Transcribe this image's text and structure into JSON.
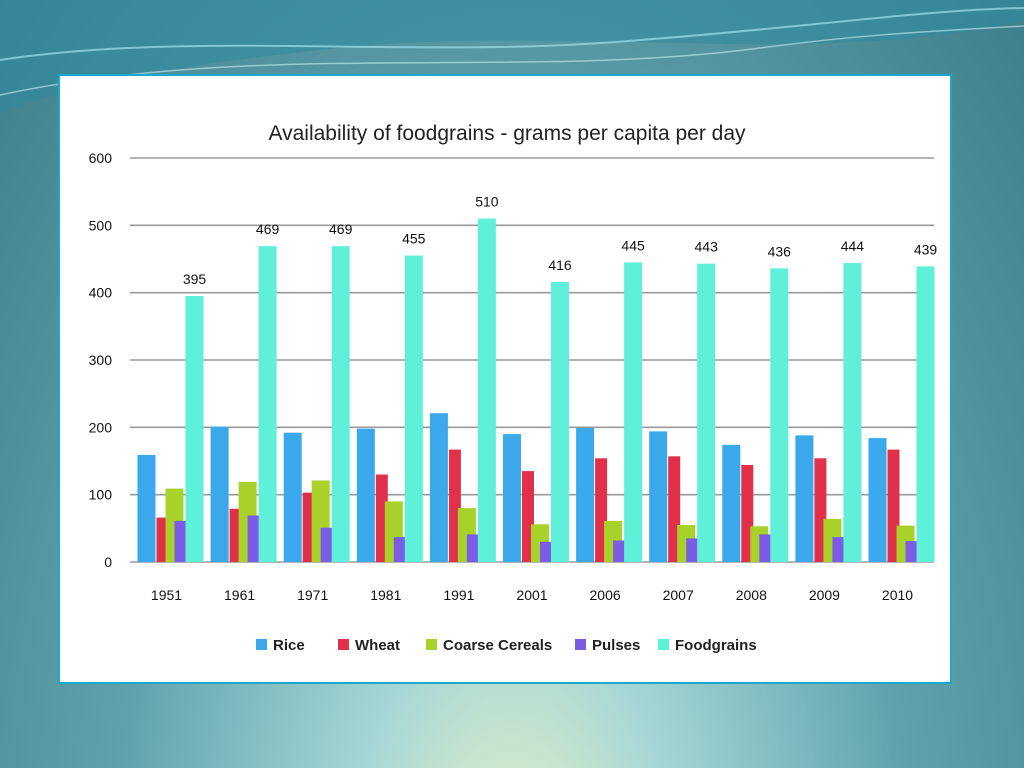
{
  "chart_data": {
    "type": "bar",
    "title": "Availability of foodgrains  - grams per capita per day",
    "xlabel": "",
    "ylabel": "",
    "ylim": [
      0,
      600
    ],
    "yticks": [
      0,
      100,
      200,
      300,
      400,
      500,
      600
    ],
    "grid": true,
    "legend_position": "bottom",
    "categories": [
      "1951",
      "1961",
      "1971",
      "1981",
      "1991",
      "2001",
      "2006",
      "2007",
      "2008",
      "2009",
      "2010"
    ],
    "series": [
      {
        "name": "Rice",
        "color": "#3aa8ea",
        "values": [
          159,
          201,
          192,
          198,
          221,
          190,
          199,
          194,
          174,
          188,
          184
        ]
      },
      {
        "name": "Wheat",
        "color": "#e0304a",
        "values": [
          66,
          79,
          103,
          130,
          167,
          135,
          154,
          157,
          144,
          154,
          167
        ]
      },
      {
        "name": "Coarse Cereals",
        "color": "#a8d12a",
        "values": [
          109,
          119,
          121,
          90,
          80,
          56,
          61,
          55,
          53,
          64,
          54
        ]
      },
      {
        "name": "Pulses",
        "color": "#7b5ce6",
        "values": [
          61,
          69,
          51,
          37,
          41,
          30,
          32,
          35,
          41,
          37,
          31
        ]
      },
      {
        "name": "Foodgrains",
        "color": "#5ef0d8",
        "values": [
          395,
          469,
          469,
          455,
          510,
          416,
          445,
          443,
          436,
          444,
          439
        ]
      }
    ],
    "data_labels_series": "Foodgrains",
    "data_labels": [
      "395",
      "469",
      "469",
      "455",
      "510",
      "416",
      "445",
      "443",
      "436",
      "444",
      "439"
    ]
  }
}
